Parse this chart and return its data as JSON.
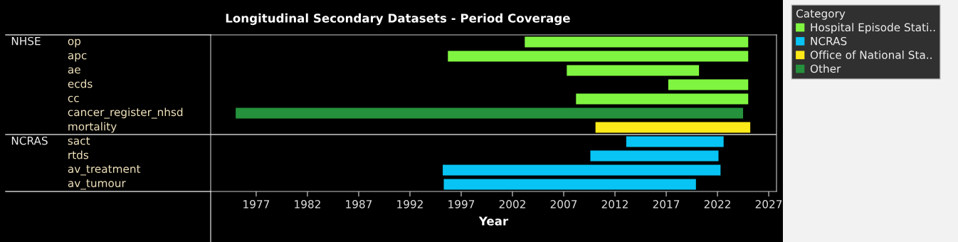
{
  "chart_data": {
    "type": "bar",
    "orientation": "horizontal",
    "title": "Longitudinal Secondary Datasets - Period Coverage",
    "xlabel": "Year",
    "legend_title": "Category",
    "legend": "right",
    "grid": false,
    "categories": [
      "op",
      "apc",
      "ae",
      "ecds",
      "cc",
      "cancer_register_nhsd",
      "mortality",
      "sact",
      "rtds",
      "av_treatment",
      "av_tumour"
    ],
    "series": [
      {
        "name": "Hospital Episode Stati..",
        "color": "#80f541",
        "base": [
          2003.2,
          1995.7,
          2007.3,
          2017.2,
          2008.2,
          null,
          null,
          null,
          null,
          null,
          null
        ],
        "values": [
          21.8,
          29.3,
          12.9,
          7.8,
          16.8,
          null,
          null,
          null,
          null,
          null,
          null
        ]
      },
      {
        "name": "NCRAS",
        "color": "#08c4f4",
        "base": [
          null,
          null,
          null,
          null,
          null,
          null,
          null,
          2013.1,
          2009.6,
          1995.2,
          1995.3
        ],
        "values": [
          null,
          null,
          null,
          null,
          null,
          null,
          null,
          9.5,
          12.5,
          27.1,
          24.6
        ]
      },
      {
        "name": "Office of National Sta..",
        "color": "#ffea19",
        "base": [
          null,
          null,
          null,
          null,
          null,
          null,
          2010.1,
          null,
          null,
          null,
          null
        ],
        "values": [
          null,
          null,
          null,
          null,
          null,
          null,
          15.1,
          null,
          null,
          null,
          null
        ]
      },
      {
        "name": "Other",
        "color": "#25913c",
        "base": [
          null,
          null,
          null,
          null,
          null,
          1975.0,
          null,
          null,
          null,
          null,
          null
        ],
        "values": [
          null,
          null,
          null,
          null,
          null,
          49.5,
          null,
          null,
          null,
          null,
          null
        ]
      }
    ],
    "annotations": [
      "NHSE",
      "NCRAS"
    ],
    "xlim": [
      1972.56,
      2027.76
    ],
    "xticks": [
      1977,
      1982,
      1987,
      1992,
      1997,
      2002,
      2007,
      2012,
      2017,
      2022,
      2027
    ]
  }
}
